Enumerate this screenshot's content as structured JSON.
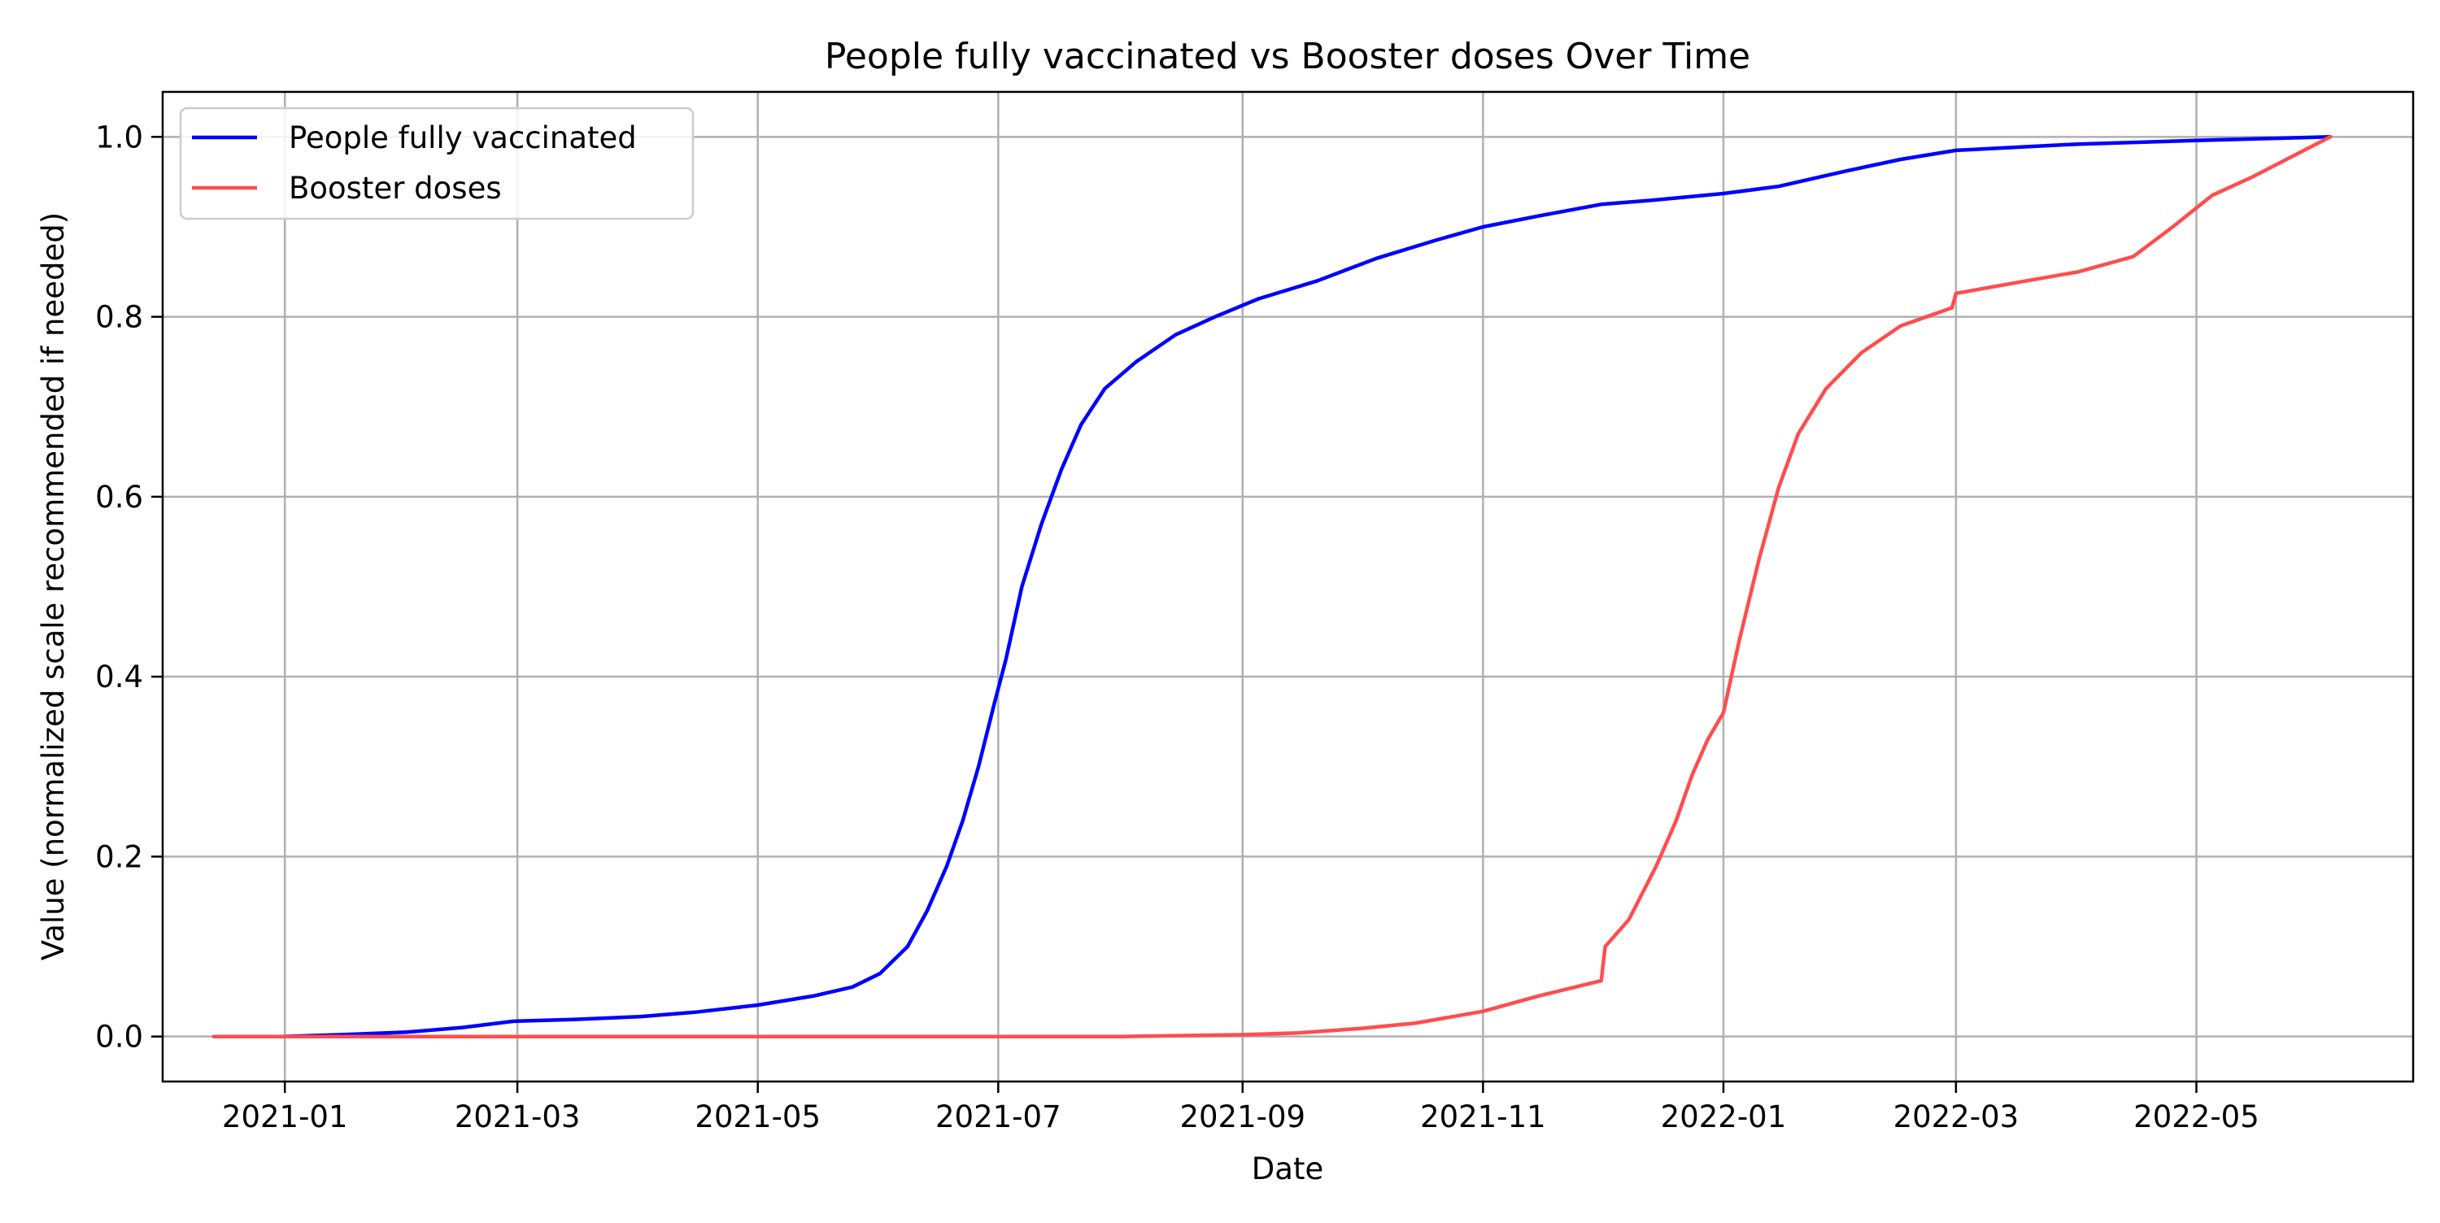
{
  "chart_data": {
    "type": "line",
    "title": "People fully vaccinated vs Booster doses Over Time",
    "xlabel": "Date",
    "ylabel": "Value (normalized scale recommended if needed)",
    "x_type": "date",
    "xlim": [
      "2020-12-01",
      "2022-06-25"
    ],
    "ylim": [
      -0.05,
      1.05
    ],
    "x_ticks": [
      "2021-01",
      "2021-03",
      "2021-05",
      "2021-07",
      "2021-09",
      "2021-11",
      "2022-01",
      "2022-03",
      "2022-05"
    ],
    "y_ticks": [
      "0.0",
      "0.2",
      "0.4",
      "0.6",
      "0.8",
      "1.0"
    ],
    "grid": true,
    "legend_position": "top-left",
    "series": [
      {
        "name": "People fully vaccinated",
        "color": "#0000ff",
        "points": [
          [
            "2020-12-14",
            0.0
          ],
          [
            "2020-12-31",
            0.0
          ],
          [
            "2021-01-15",
            0.002
          ],
          [
            "2021-02-01",
            0.005
          ],
          [
            "2021-02-15",
            0.01
          ],
          [
            "2021-02-28",
            0.017
          ],
          [
            "2021-03-15",
            0.019
          ],
          [
            "2021-04-01",
            0.022
          ],
          [
            "2021-04-15",
            0.027
          ],
          [
            "2021-05-01",
            0.035
          ],
          [
            "2021-05-15",
            0.045
          ],
          [
            "2021-05-25",
            0.055
          ],
          [
            "2021-06-01",
            0.07
          ],
          [
            "2021-06-08",
            0.1
          ],
          [
            "2021-06-13",
            0.14
          ],
          [
            "2021-06-18",
            0.19
          ],
          [
            "2021-06-22",
            0.24
          ],
          [
            "2021-06-26",
            0.3
          ],
          [
            "2021-06-30",
            0.37
          ],
          [
            "2021-07-03",
            0.42
          ],
          [
            "2021-07-07",
            0.5
          ],
          [
            "2021-07-12",
            0.57
          ],
          [
            "2021-07-17",
            0.63
          ],
          [
            "2021-07-22",
            0.68
          ],
          [
            "2021-07-28",
            0.72
          ],
          [
            "2021-08-05",
            0.75
          ],
          [
            "2021-08-15",
            0.78
          ],
          [
            "2021-08-25",
            0.8
          ],
          [
            "2021-09-05",
            0.82
          ],
          [
            "2021-09-20",
            0.84
          ],
          [
            "2021-10-05",
            0.865
          ],
          [
            "2021-10-20",
            0.885
          ],
          [
            "2021-11-01",
            0.9
          ],
          [
            "2021-11-15",
            0.912
          ],
          [
            "2021-12-01",
            0.925
          ],
          [
            "2021-12-15",
            0.93
          ],
          [
            "2022-01-01",
            0.937
          ],
          [
            "2022-01-15",
            0.945
          ],
          [
            "2022-02-01",
            0.962
          ],
          [
            "2022-02-15",
            0.975
          ],
          [
            "2022-03-01",
            0.985
          ],
          [
            "2022-04-01",
            0.992
          ],
          [
            "2022-05-01",
            0.996
          ],
          [
            "2022-06-04",
            1.0
          ]
        ]
      },
      {
        "name": "Booster doses",
        "color": "#ff4d4d",
        "points": [
          [
            "2020-12-14",
            0.0
          ],
          [
            "2021-08-01",
            0.0
          ],
          [
            "2021-09-01",
            0.002
          ],
          [
            "2021-09-15",
            0.004
          ],
          [
            "2021-10-01",
            0.009
          ],
          [
            "2021-10-15",
            0.015
          ],
          [
            "2021-11-01",
            0.028
          ],
          [
            "2021-11-15",
            0.045
          ],
          [
            "2021-12-01",
            0.062
          ],
          [
            "2021-12-02",
            0.1
          ],
          [
            "2021-12-08",
            0.13
          ],
          [
            "2021-12-15",
            0.19
          ],
          [
            "2021-12-20",
            0.24
          ],
          [
            "2021-12-24",
            0.29
          ],
          [
            "2021-12-28",
            0.33
          ],
          [
            "2022-01-01",
            0.36
          ],
          [
            "2022-01-05",
            0.44
          ],
          [
            "2022-01-10",
            0.53
          ],
          [
            "2022-01-15",
            0.61
          ],
          [
            "2022-01-20",
            0.67
          ],
          [
            "2022-01-27",
            0.72
          ],
          [
            "2022-02-05",
            0.76
          ],
          [
            "2022-02-15",
            0.79
          ],
          [
            "2022-02-28",
            0.81
          ],
          [
            "2022-03-01",
            0.826
          ],
          [
            "2022-03-15",
            0.837
          ],
          [
            "2022-04-01",
            0.85
          ],
          [
            "2022-04-15",
            0.867
          ],
          [
            "2022-04-25",
            0.9
          ],
          [
            "2022-05-05",
            0.935
          ],
          [
            "2022-05-15",
            0.955
          ],
          [
            "2022-06-04",
            1.0
          ]
        ]
      }
    ]
  }
}
